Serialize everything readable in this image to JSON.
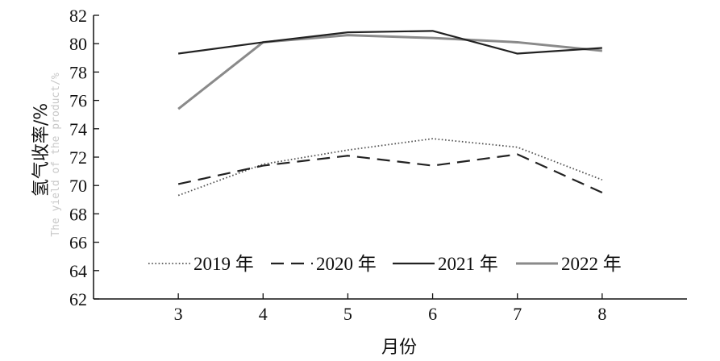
{
  "chart_data": {
    "type": "line",
    "xlabel": "月份",
    "ylabel": "氢气收率/%",
    "ylabel_en": "The yield of the product/%",
    "x": [
      3,
      4,
      5,
      6,
      7,
      8
    ],
    "xlim": [
      2,
      9
    ],
    "ylim": [
      62,
      82
    ],
    "yticks": [
      62,
      64,
      66,
      68,
      70,
      72,
      74,
      76,
      78,
      80,
      82
    ],
    "xticks": [
      3,
      4,
      5,
      6,
      7,
      8
    ],
    "grid": false,
    "legend_position": "bottom-center",
    "series": [
      {
        "name": "2019 年",
        "values": [
          69.3,
          71.5,
          72.5,
          73.3,
          72.7,
          70.4
        ],
        "style": "dotted",
        "color": "#555555"
      },
      {
        "name": "2020 年",
        "values": [
          70.1,
          71.4,
          72.1,
          71.4,
          72.2,
          69.5
        ],
        "style": "dashed",
        "color": "#222222"
      },
      {
        "name": "2021 年",
        "values": [
          79.3,
          80.1,
          80.8,
          80.9,
          79.3,
          79.7
        ],
        "style": "solid",
        "color": "#222222"
      },
      {
        "name": "2022 年",
        "values": [
          75.4,
          80.1,
          80.6,
          80.4,
          80.1,
          79.5
        ],
        "style": "solid",
        "color": "#8a8a8a"
      }
    ]
  }
}
